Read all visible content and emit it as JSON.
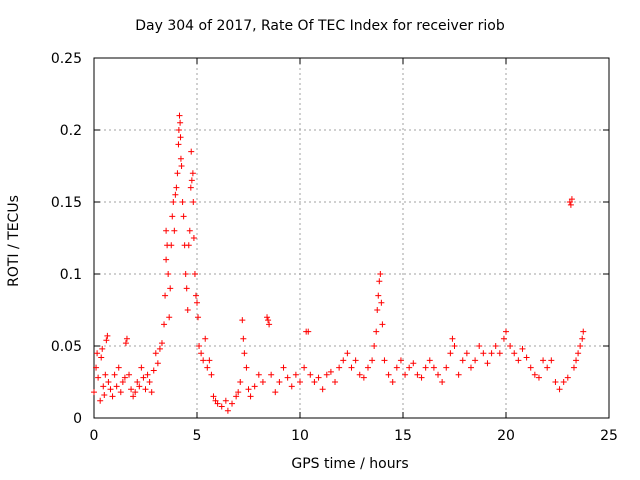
{
  "chart_data": {
    "type": "scatter",
    "title": "Day 304 of 2017, Rate Of TEC Index for receiver riob",
    "xlabel": "GPS time / hours",
    "ylabel": "ROTI / TECUs",
    "xlim": [
      0,
      25
    ],
    "ylim": [
      0,
      0.25
    ],
    "x_ticks": [
      "0",
      "5",
      "10",
      "15",
      "20",
      "25"
    ],
    "y_ticks": [
      "0",
      "0.05",
      "0.1",
      "0.15",
      "0.2",
      "0.25"
    ],
    "grid": true,
    "marker": "+",
    "color": "#ff0000",
    "series": [
      {
        "points": [
          [
            0.0,
            0.018
          ],
          [
            0.1,
            0.035
          ],
          [
            0.15,
            0.045
          ],
          [
            0.2,
            0.028
          ],
          [
            0.3,
            0.012
          ],
          [
            0.35,
            0.042
          ],
          [
            0.4,
            0.048
          ],
          [
            0.45,
            0.022
          ],
          [
            0.5,
            0.016
          ],
          [
            0.55,
            0.03
          ],
          [
            0.6,
            0.054
          ],
          [
            0.65,
            0.057
          ],
          [
            0.7,
            0.025
          ],
          [
            0.8,
            0.02
          ],
          [
            0.9,
            0.015
          ],
          [
            1.0,
            0.03
          ],
          [
            1.1,
            0.022
          ],
          [
            1.2,
            0.035
          ],
          [
            1.3,
            0.018
          ],
          [
            1.4,
            0.025
          ],
          [
            1.5,
            0.028
          ],
          [
            1.55,
            0.052
          ],
          [
            1.6,
            0.055
          ],
          [
            1.7,
            0.03
          ],
          [
            1.8,
            0.02
          ],
          [
            1.9,
            0.015
          ],
          [
            2.0,
            0.018
          ],
          [
            2.1,
            0.025
          ],
          [
            2.2,
            0.022
          ],
          [
            2.3,
            0.035
          ],
          [
            2.4,
            0.028
          ],
          [
            2.5,
            0.02
          ],
          [
            2.6,
            0.03
          ],
          [
            2.7,
            0.025
          ],
          [
            2.8,
            0.018
          ],
          [
            2.9,
            0.033
          ],
          [
            3.0,
            0.045
          ],
          [
            3.1,
            0.038
          ],
          [
            3.2,
            0.048
          ],
          [
            3.3,
            0.052
          ],
          [
            3.4,
            0.065
          ],
          [
            3.45,
            0.085
          ],
          [
            3.5,
            0.11
          ],
          [
            3.5,
            0.13
          ],
          [
            3.55,
            0.12
          ],
          [
            3.6,
            0.1
          ],
          [
            3.65,
            0.07
          ],
          [
            3.7,
            0.09
          ],
          [
            3.75,
            0.12
          ],
          [
            3.8,
            0.14
          ],
          [
            3.85,
            0.15
          ],
          [
            3.9,
            0.13
          ],
          [
            3.95,
            0.155
          ],
          [
            4.0,
            0.16
          ],
          [
            4.05,
            0.17
          ],
          [
            4.1,
            0.19
          ],
          [
            4.12,
            0.2
          ],
          [
            4.15,
            0.21
          ],
          [
            4.18,
            0.205
          ],
          [
            4.2,
            0.195
          ],
          [
            4.22,
            0.18
          ],
          [
            4.25,
            0.175
          ],
          [
            4.3,
            0.15
          ],
          [
            4.35,
            0.14
          ],
          [
            4.4,
            0.12
          ],
          [
            4.45,
            0.1
          ],
          [
            4.5,
            0.09
          ],
          [
            4.55,
            0.075
          ],
          [
            4.6,
            0.12
          ],
          [
            4.65,
            0.13
          ],
          [
            4.7,
            0.16
          ],
          [
            4.72,
            0.185
          ],
          [
            4.75,
            0.165
          ],
          [
            4.8,
            0.17
          ],
          [
            4.82,
            0.15
          ],
          [
            4.85,
            0.125
          ],
          [
            4.9,
            0.1
          ],
          [
            4.95,
            0.085
          ],
          [
            5.0,
            0.08
          ],
          [
            5.05,
            0.07
          ],
          [
            5.1,
            0.05
          ],
          [
            5.2,
            0.045
          ],
          [
            5.3,
            0.04
          ],
          [
            5.4,
            0.055
          ],
          [
            5.5,
            0.035
          ],
          [
            5.6,
            0.04
          ],
          [
            5.7,
            0.03
          ],
          [
            5.8,
            0.015
          ],
          [
            5.9,
            0.012
          ],
          [
            6.0,
            0.01
          ],
          [
            6.2,
            0.008
          ],
          [
            6.4,
            0.012
          ],
          [
            6.5,
            0.005
          ],
          [
            6.7,
            0.01
          ],
          [
            6.9,
            0.015
          ],
          [
            7.0,
            0.018
          ],
          [
            7.1,
            0.025
          ],
          [
            7.2,
            0.068
          ],
          [
            7.25,
            0.055
          ],
          [
            7.3,
            0.045
          ],
          [
            7.4,
            0.035
          ],
          [
            7.5,
            0.02
          ],
          [
            7.6,
            0.015
          ],
          [
            7.8,
            0.022
          ],
          [
            8.0,
            0.03
          ],
          [
            8.2,
            0.025
          ],
          [
            8.4,
            0.07
          ],
          [
            8.45,
            0.068
          ],
          [
            8.5,
            0.065
          ],
          [
            8.6,
            0.03
          ],
          [
            8.8,
            0.018
          ],
          [
            9.0,
            0.025
          ],
          [
            9.2,
            0.035
          ],
          [
            9.4,
            0.028
          ],
          [
            9.6,
            0.022
          ],
          [
            9.8,
            0.03
          ],
          [
            10.0,
            0.025
          ],
          [
            10.2,
            0.035
          ],
          [
            10.3,
            0.06
          ],
          [
            10.4,
            0.06
          ],
          [
            10.5,
            0.03
          ],
          [
            10.7,
            0.025
          ],
          [
            10.9,
            0.028
          ],
          [
            11.1,
            0.02
          ],
          [
            11.3,
            0.03
          ],
          [
            11.5,
            0.032
          ],
          [
            11.7,
            0.025
          ],
          [
            11.9,
            0.035
          ],
          [
            12.1,
            0.04
          ],
          [
            12.3,
            0.045
          ],
          [
            12.5,
            0.035
          ],
          [
            12.7,
            0.04
          ],
          [
            12.9,
            0.03
          ],
          [
            13.1,
            0.028
          ],
          [
            13.3,
            0.035
          ],
          [
            13.5,
            0.04
          ],
          [
            13.6,
            0.05
          ],
          [
            13.7,
            0.06
          ],
          [
            13.75,
            0.075
          ],
          [
            13.8,
            0.085
          ],
          [
            13.85,
            0.095
          ],
          [
            13.9,
            0.1
          ],
          [
            13.95,
            0.08
          ],
          [
            14.0,
            0.065
          ],
          [
            14.1,
            0.04
          ],
          [
            14.3,
            0.03
          ],
          [
            14.5,
            0.025
          ],
          [
            14.7,
            0.035
          ],
          [
            14.9,
            0.04
          ],
          [
            15.1,
            0.03
          ],
          [
            15.3,
            0.035
          ],
          [
            15.5,
            0.038
          ],
          [
            15.7,
            0.03
          ],
          [
            15.9,
            0.028
          ],
          [
            16.1,
            0.035
          ],
          [
            16.3,
            0.04
          ],
          [
            16.5,
            0.035
          ],
          [
            16.7,
            0.03
          ],
          [
            16.9,
            0.025
          ],
          [
            17.1,
            0.035
          ],
          [
            17.3,
            0.045
          ],
          [
            17.4,
            0.055
          ],
          [
            17.5,
            0.05
          ],
          [
            17.7,
            0.03
          ],
          [
            17.9,
            0.04
          ],
          [
            18.1,
            0.045
          ],
          [
            18.3,
            0.035
          ],
          [
            18.5,
            0.04
          ],
          [
            18.7,
            0.05
          ],
          [
            18.9,
            0.045
          ],
          [
            19.1,
            0.038
          ],
          [
            19.3,
            0.045
          ],
          [
            19.5,
            0.05
          ],
          [
            19.7,
            0.045
          ],
          [
            19.9,
            0.055
          ],
          [
            20.0,
            0.06
          ],
          [
            20.2,
            0.05
          ],
          [
            20.4,
            0.045
          ],
          [
            20.6,
            0.04
          ],
          [
            20.8,
            0.048
          ],
          [
            21.0,
            0.042
          ],
          [
            21.2,
            0.035
          ],
          [
            21.4,
            0.03
          ],
          [
            21.6,
            0.028
          ],
          [
            21.8,
            0.04
          ],
          [
            22.0,
            0.035
          ],
          [
            22.2,
            0.04
          ],
          [
            22.4,
            0.025
          ],
          [
            22.6,
            0.02
          ],
          [
            22.8,
            0.025
          ],
          [
            23.0,
            0.028
          ],
          [
            23.1,
            0.15
          ],
          [
            23.15,
            0.148
          ],
          [
            23.2,
            0.152
          ],
          [
            23.3,
            0.035
          ],
          [
            23.4,
            0.04
          ],
          [
            23.5,
            0.045
          ],
          [
            23.6,
            0.05
          ],
          [
            23.7,
            0.055
          ],
          [
            23.75,
            0.06
          ]
        ]
      }
    ]
  }
}
